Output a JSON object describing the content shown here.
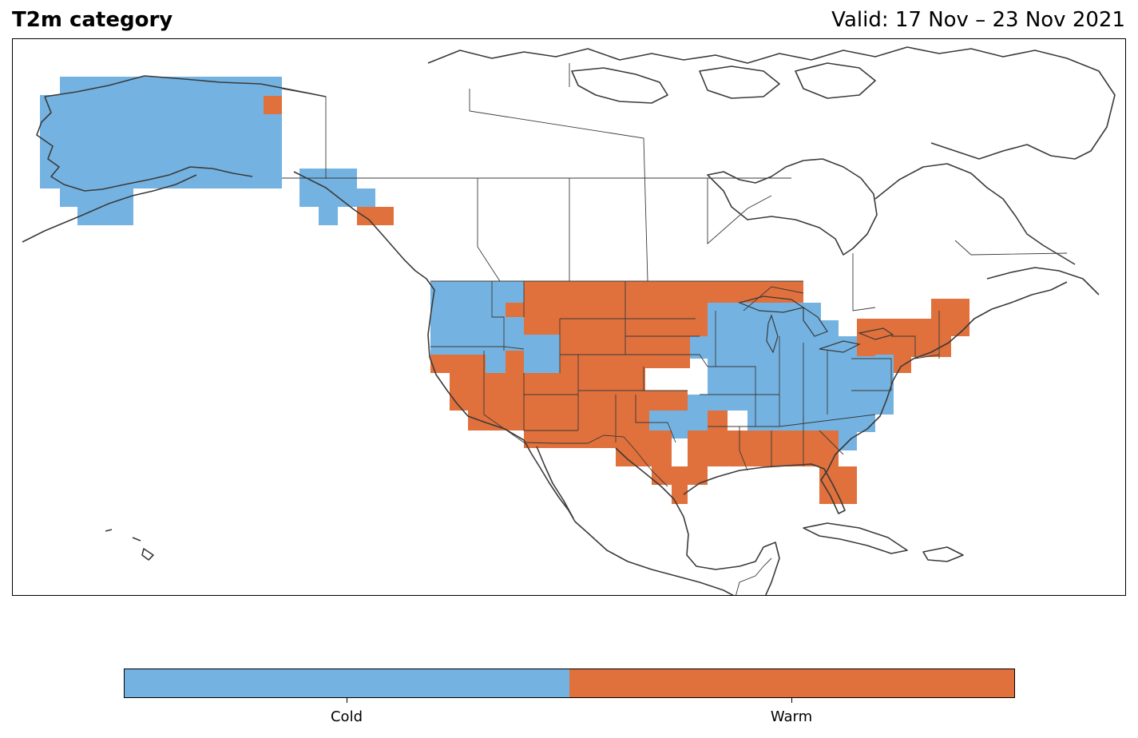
{
  "title": "T2m category",
  "valid_text": "Valid: 17 Nov – 23 Nov 2021",
  "legend": {
    "categories": [
      {
        "label": "Cold",
        "color": "#74b3e1"
      },
      {
        "label": "Warm",
        "color": "#e0703c"
      }
    ]
  },
  "colors": {
    "cold": "#74b3e1",
    "warm": "#e0703c",
    "coastline": "#3a3a3a",
    "frame": "#000000"
  }
}
